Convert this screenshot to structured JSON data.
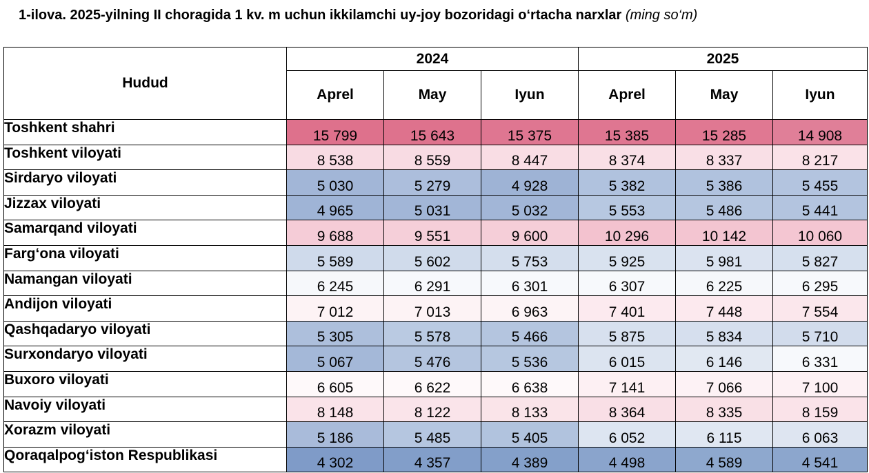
{
  "title": {
    "main": "1-ilova. 2025-yilning II choragida 1 kv. m uchun ikkilamchi uy-joy bozoridagi o‘rtacha narxlar",
    "unit": "(ming so‘m)"
  },
  "table": {
    "region_header": "Hudud",
    "years": [
      "2024",
      "2025"
    ],
    "months": [
      "Aprel",
      "May",
      "Iyun",
      "Aprel",
      "May",
      "Iyun"
    ],
    "rows": [
      {
        "region": "Toshkent shahri",
        "values": [
          "15 799",
          "15 643",
          "15 375",
          "15 385",
          "15 285",
          "14 908"
        ],
        "colors": [
          "#de718c",
          "#de728d",
          "#df7691",
          "#df7691",
          "#e07892",
          "#e07f98"
        ]
      },
      {
        "region": "Toshkent viloyati",
        "values": [
          "8 538",
          "8 559",
          "8 447",
          "8 374",
          "8 337",
          "8 217"
        ],
        "colors": [
          "#f8dbe3",
          "#f8dbe3",
          "#f9dde4",
          "#f9dfe6",
          "#f9dfe6",
          "#fae2e8"
        ]
      },
      {
        "region": "Sirdaryo viloyati",
        "values": [
          "5 030",
          "5 279",
          "4 928",
          "5 382",
          "5 386",
          "5 455"
        ],
        "colors": [
          "#a2b6d7",
          "#acbedc",
          "#9eb3d5",
          "#b0c2de",
          "#b0c2de",
          "#b3c4df"
        ]
      },
      {
        "region": "Jizzax viloyati",
        "values": [
          "4 965",
          "5 031",
          "5 032",
          "5 553",
          "5 486",
          "5 441"
        ],
        "colors": [
          "#9fb4d6",
          "#a2b6d7",
          "#a2b6d7",
          "#b7c8e1",
          "#b5c6e0",
          "#b3c4df"
        ]
      },
      {
        "region": "Samarqand viloyati",
        "values": [
          "9 688",
          "9 551",
          "9 600",
          "10 296",
          "10 142",
          "10 060"
        ],
        "colors": [
          "#f5ccd7",
          "#f5cfd9",
          "#f5ced8",
          "#f3c2cf",
          "#f3c5d1",
          "#f4c6d2"
        ]
      },
      {
        "region": "Farg‘ona viloyati",
        "values": [
          "5 589",
          "5 602",
          "5 753",
          "5 925",
          "5 981",
          "5 827"
        ],
        "colors": [
          "#cfdaeb",
          "#d0dbeb",
          "#d4deed",
          "#d9e2ef",
          "#dbe3f0",
          "#d6e0ee"
        ]
      },
      {
        "region": "Namangan viloyati",
        "values": [
          "6 245",
          "6 291",
          "6 301",
          "6 307",
          "6 225",
          "6 295"
        ],
        "colors": [
          "#f6f8fb",
          "#f7f9fc",
          "#f7f9fc",
          "#f7f9fc",
          "#f6f8fb",
          "#f7f9fc"
        ]
      },
      {
        "region": "Andijon viloyati",
        "values": [
          "7 012",
          "7 013",
          "6 963",
          "7 401",
          "7 448",
          "7 554"
        ],
        "colors": [
          "#fdf3f5",
          "#fdf3f5",
          "#fdf4f6",
          "#fceaef",
          "#fce9ee",
          "#fbe7ec"
        ]
      },
      {
        "region": "Qashqadaryo viloyati",
        "values": [
          "5 305",
          "5 578",
          "5 466",
          "5 875",
          "5 834",
          "5 710"
        ],
        "colors": [
          "#adbfdc",
          "#bacae2",
          "#b4c5df",
          "#d7e0ee",
          "#d6dfee",
          "#d2dcec"
        ]
      },
      {
        "region": "Surxondaryo viloyati",
        "values": [
          "5 067",
          "5 476",
          "5 536",
          "6 015",
          "6 146",
          "6 331"
        ],
        "colors": [
          "#a4b8d8",
          "#b4c5df",
          "#b6c7e0",
          "#dce4f0",
          "#e1e8f2",
          "#f7f9fc"
        ]
      },
      {
        "region": "Buxoro viloyati",
        "values": [
          "6 605",
          "6 622",
          "6 638",
          "7 141",
          "7 066",
          "7 100"
        ],
        "colors": [
          "#fef9fa",
          "#fef9fa",
          "#fef9fa",
          "#fdf0f3",
          "#fdf2f5",
          "#fdf1f4"
        ]
      },
      {
        "region": "Navoiy viloyati",
        "values": [
          "8 148",
          "8 122",
          "8 133",
          "8 364",
          "8 335",
          "8 159"
        ],
        "colors": [
          "#fae3e9",
          "#fae4ea",
          "#fae4e9",
          "#f9dfe6",
          "#f9e0e6",
          "#fae3e9"
        ]
      },
      {
        "region": "Xorazm viloyati",
        "values": [
          "5 186",
          "5 485",
          "5 405",
          "6 052",
          "6 115",
          "6 063"
        ],
        "colors": [
          "#a9bbda",
          "#b5c6e0",
          "#b1c3de",
          "#dde5f1",
          "#e0e7f2",
          "#dee5f1"
        ]
      },
      {
        "region": "Qoraqalpog‘iston Respublikasi",
        "values": [
          "4 302",
          "4 357",
          "4 389",
          "4 498",
          "4 589",
          "4 541"
        ],
        "colors": [
          "#7f9bc8",
          "#829ec9",
          "#84a0ca",
          "#8aa4cc",
          "#8ea8ce",
          "#8ca6cd"
        ]
      }
    ]
  }
}
